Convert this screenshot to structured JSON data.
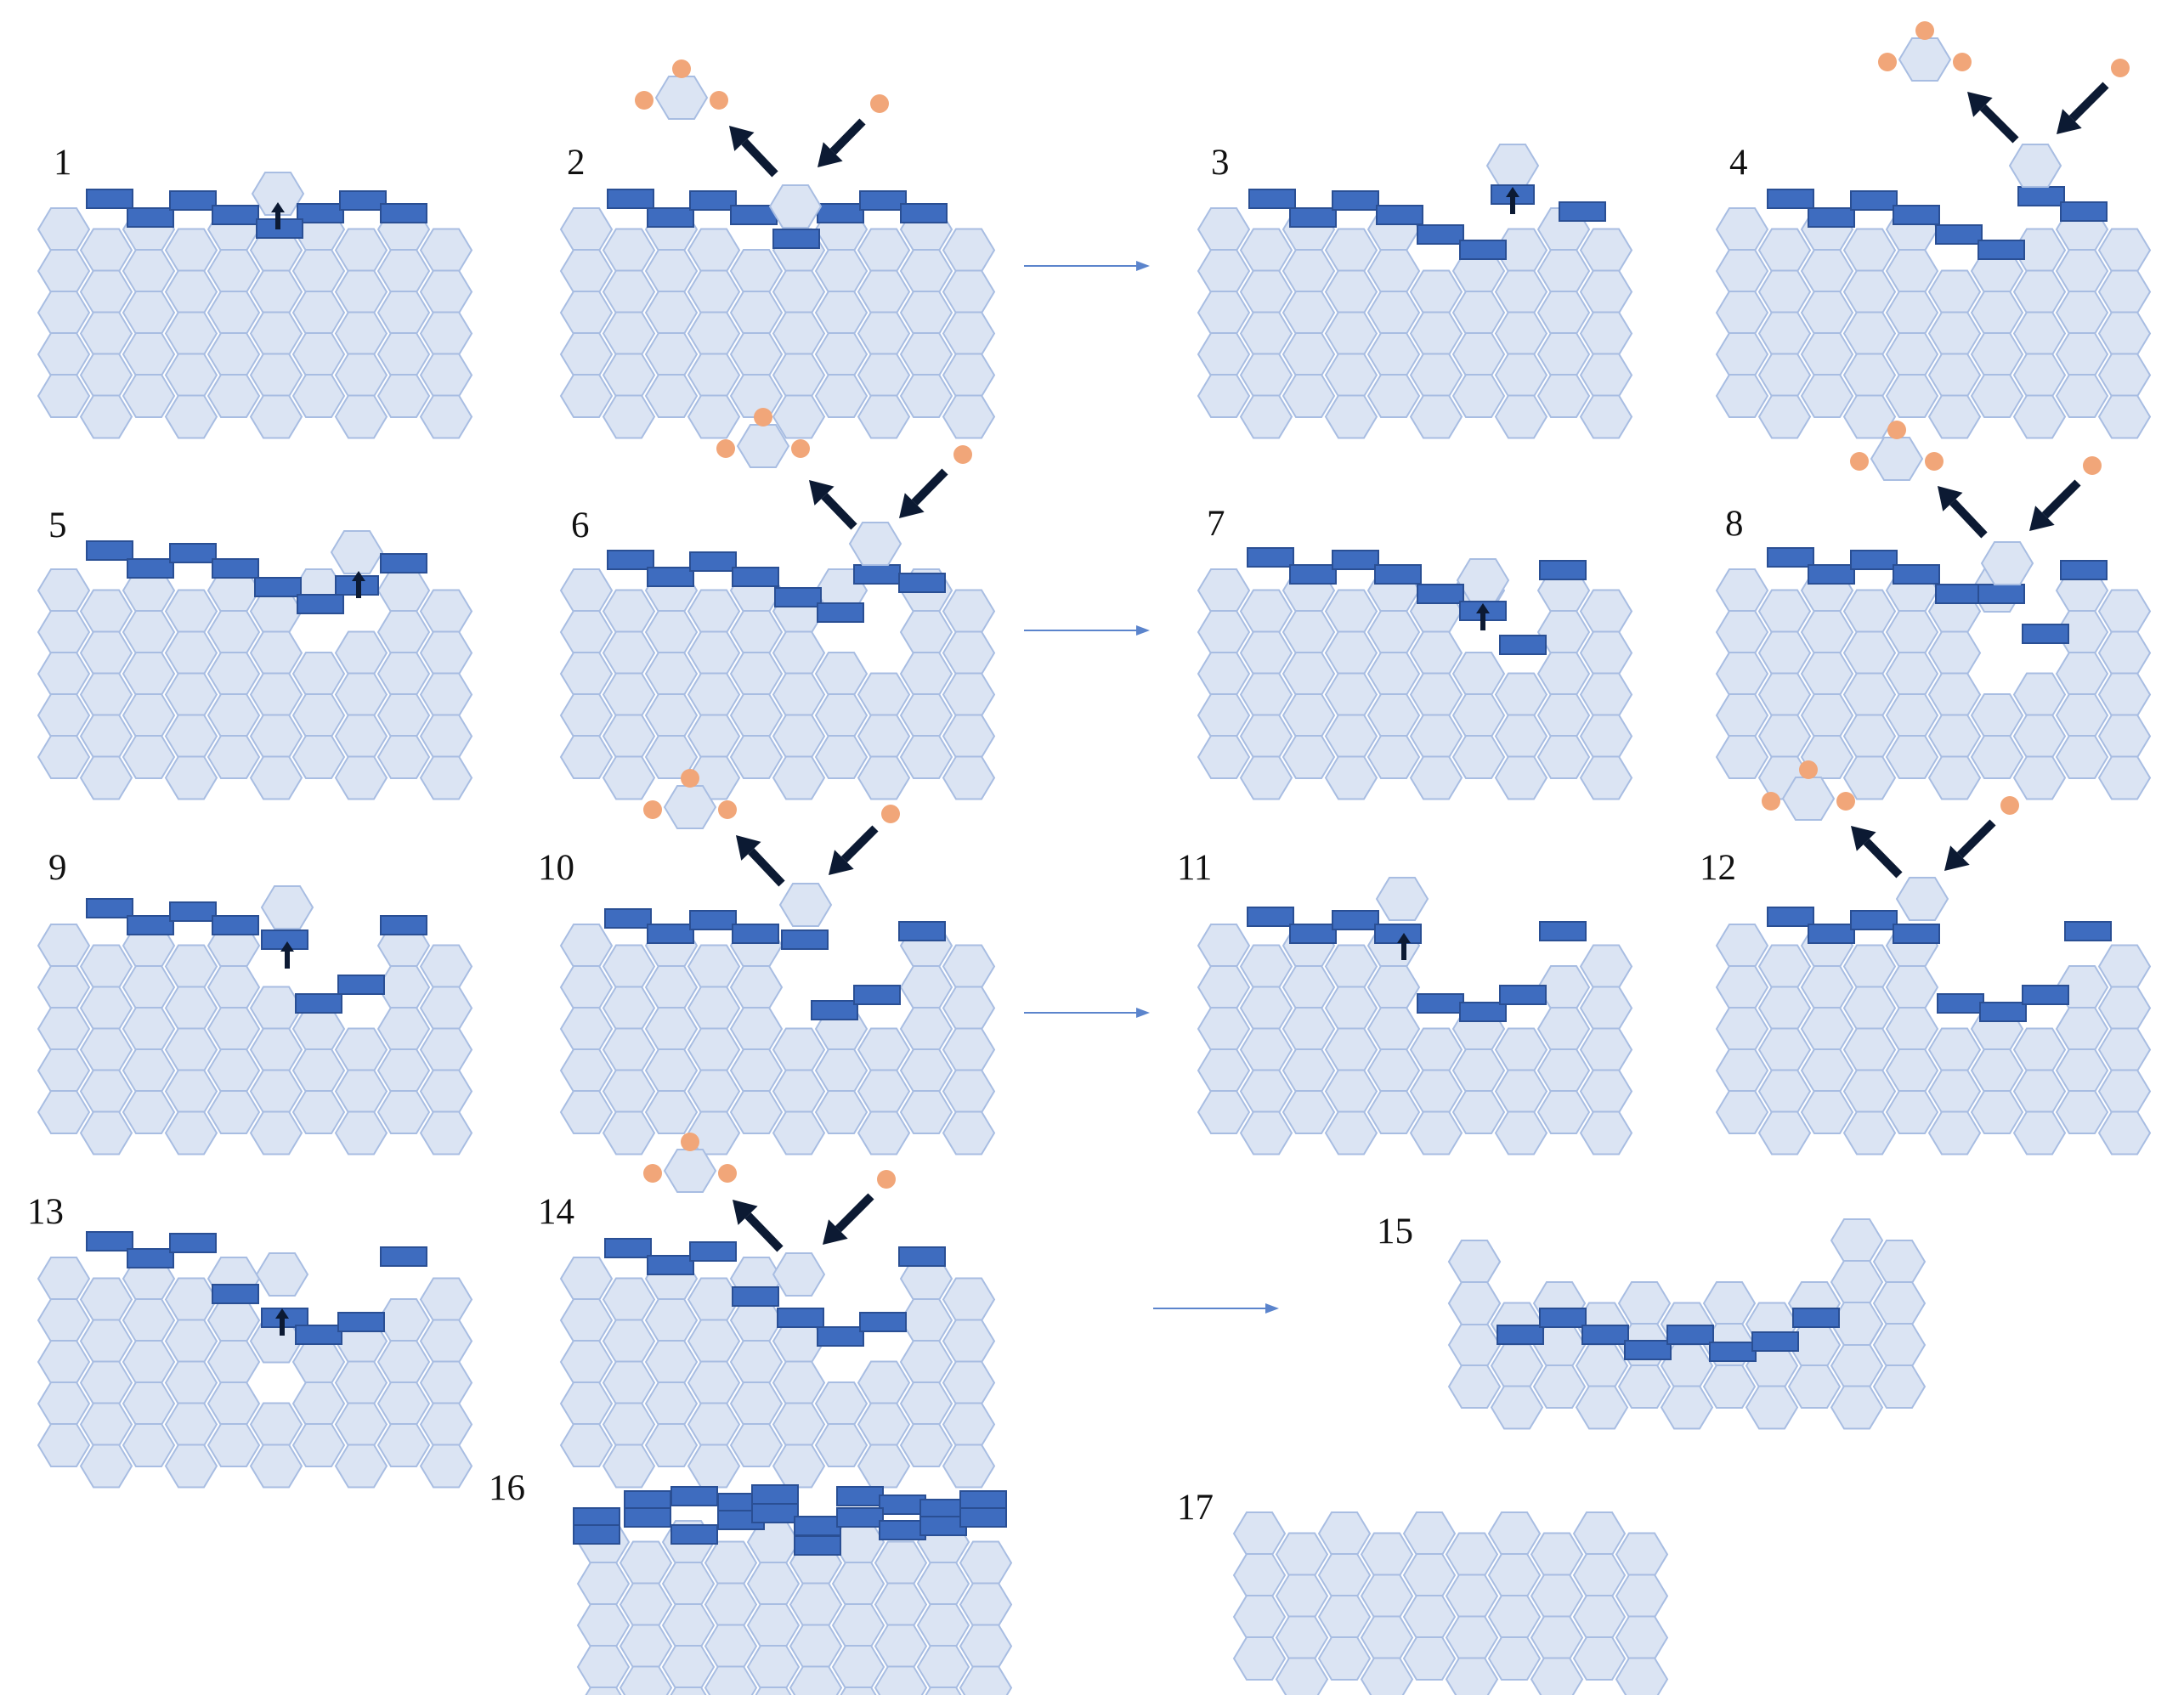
{
  "figure": {
    "palette": {
      "hex_fill": "#dbe4f3",
      "hex_stroke": "#a8bde2",
      "adsorbate_fill": "#3e6cbf",
      "adsorbate_stroke": "#2a4f94",
      "atom": "#f1a679",
      "arrow": "#0c1a33",
      "flow_arrow": "#5b84cc"
    },
    "panels": [
      {
        "label": "1"
      },
      {
        "label": "2"
      },
      {
        "label": "3"
      },
      {
        "label": "4"
      },
      {
        "label": "5"
      },
      {
        "label": "6"
      },
      {
        "label": "7"
      },
      {
        "label": "8"
      },
      {
        "label": "9"
      },
      {
        "label": "10"
      },
      {
        "label": "11"
      },
      {
        "label": "12"
      },
      {
        "label": "13"
      },
      {
        "label": "14"
      },
      {
        "label": "15"
      },
      {
        "label": "16"
      },
      {
        "label": "17"
      }
    ]
  }
}
